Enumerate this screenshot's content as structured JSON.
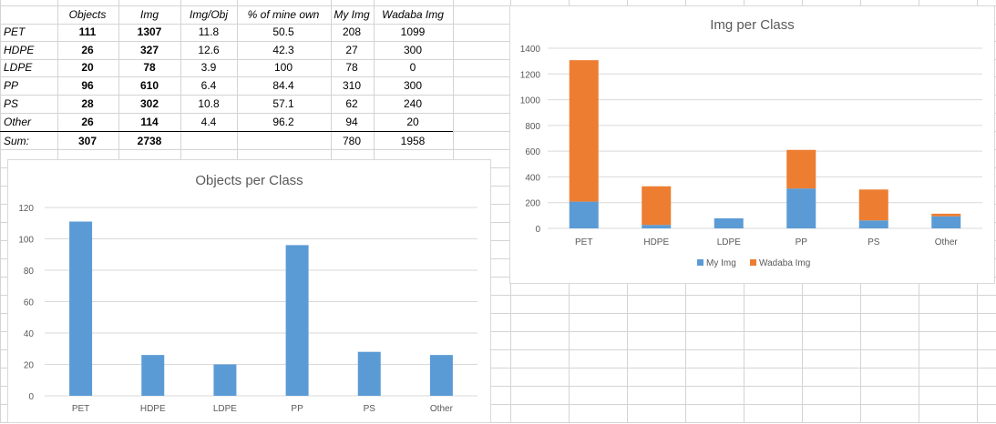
{
  "table": {
    "headers": [
      "Objects",
      "Img",
      "Img/Obj",
      "% of mine own",
      "My Img",
      "Wadaba Img"
    ],
    "rows": [
      {
        "label": "PET",
        "cells": [
          "111",
          "1307",
          "11.8",
          "50.5",
          "208",
          "1099"
        ]
      },
      {
        "label": "HDPE",
        "cells": [
          "26",
          "327",
          "12.6",
          "42.3",
          "27",
          "300"
        ]
      },
      {
        "label": "LDPE",
        "cells": [
          "20",
          "78",
          "3.9",
          "100",
          "78",
          "0"
        ]
      },
      {
        "label": "PP",
        "cells": [
          "96",
          "610",
          "6.4",
          "84.4",
          "310",
          "300"
        ]
      },
      {
        "label": "PS",
        "cells": [
          "28",
          "302",
          "10.8",
          "57.1",
          "62",
          "240"
        ]
      },
      {
        "label": "Other",
        "cells": [
          "26",
          "114",
          "4.4",
          "96.2",
          "94",
          "20"
        ]
      }
    ],
    "sum_row": {
      "label": "Sum:",
      "cells": [
        "307",
        "2738",
        "",
        "",
        "780",
        "1958"
      ]
    }
  },
  "colors": {
    "blue": "#5b9bd5",
    "orange": "#ed7d31",
    "axis_text": "#595959",
    "gridline": "#d9d9d9"
  },
  "chart_data": [
    {
      "type": "bar",
      "title": "Objects per Class",
      "categories": [
        "PET",
        "HDPE",
        "LDPE",
        "PP",
        "PS",
        "Other"
      ],
      "values": [
        111,
        26,
        20,
        96,
        28,
        26
      ],
      "ylim": [
        0,
        120
      ],
      "yticks": [
        0,
        20,
        40,
        60,
        80,
        100,
        120
      ],
      "grid": true,
      "legend": "none"
    },
    {
      "type": "bar",
      "stacked": true,
      "title": "Img per Class",
      "categories": [
        "PET",
        "HDPE",
        "LDPE",
        "PP",
        "PS",
        "Other"
      ],
      "series": [
        {
          "name": "My Img",
          "values": [
            208,
            27,
            78,
            310,
            62,
            94
          ]
        },
        {
          "name": "Wadaba Img",
          "values": [
            1099,
            300,
            0,
            300,
            240,
            20
          ]
        }
      ],
      "ylim": [
        0,
        1400
      ],
      "yticks": [
        0,
        200,
        400,
        600,
        800,
        1000,
        1200,
        1400
      ],
      "grid": true,
      "legend": "bottom"
    }
  ]
}
